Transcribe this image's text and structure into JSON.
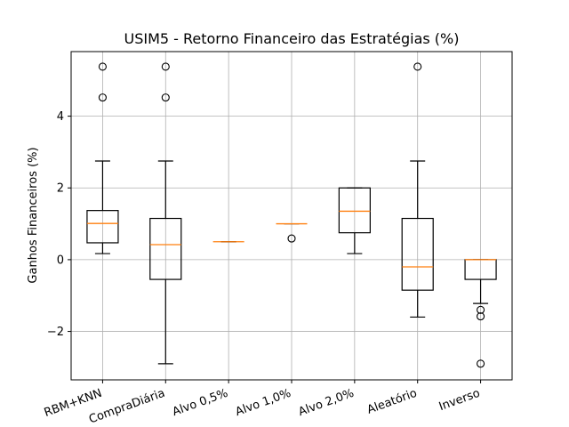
{
  "chart_data": {
    "type": "box",
    "title": "USIM5 - Retorno Financeiro das Estratégias (%)",
    "xlabel": "",
    "ylabel": "Ganhos Financeiros (%)",
    "ylim": [
      -3.35,
      5.8
    ],
    "yticks": [
      -2,
      0,
      2,
      4
    ],
    "ytick_labels": [
      "−2",
      "0",
      "2",
      "4"
    ],
    "grid": true,
    "categories": [
      "RBM+KNN",
      "CompraDiária",
      "Alvo 0,5%",
      "Alvo 1,0%",
      "Alvo 2,0%",
      "Aleatório",
      "Inverso"
    ],
    "boxes": [
      {
        "whisker_low": 0.17,
        "q1": 0.47,
        "median": 1.01,
        "q3": 1.37,
        "whisker_high": 2.75,
        "outliers": [
          4.52,
          5.38
        ]
      },
      {
        "whisker_low": -2.9,
        "q1": -0.55,
        "median": 0.42,
        "q3": 1.15,
        "whisker_high": 2.75,
        "outliers": [
          4.52,
          5.38
        ]
      },
      {
        "whisker_low": 0.5,
        "q1": 0.5,
        "median": 0.5,
        "q3": 0.5,
        "whisker_high": 0.5,
        "outliers": []
      },
      {
        "whisker_low": 1.0,
        "q1": 1.0,
        "median": 1.0,
        "q3": 1.0,
        "whisker_high": 1.0,
        "outliers": [
          0.59
        ]
      },
      {
        "whisker_low": 0.17,
        "q1": 0.75,
        "median": 1.35,
        "q3": 2.0,
        "whisker_high": 2.0,
        "outliers": []
      },
      {
        "whisker_low": -1.6,
        "q1": -0.85,
        "median": -0.2,
        "q3": 1.15,
        "whisker_high": 2.75,
        "outliers": [
          5.38
        ]
      },
      {
        "whisker_low": -1.22,
        "q1": -0.55,
        "median": 0.0,
        "q3": 0.0,
        "whisker_high": 0.0,
        "outliers": [
          -1.4,
          -1.58,
          -2.9
        ]
      }
    ],
    "colors": {
      "box": "#000000",
      "median": "#ff7f0e",
      "grid": "#b0b0b0",
      "axes": "#000000"
    }
  }
}
